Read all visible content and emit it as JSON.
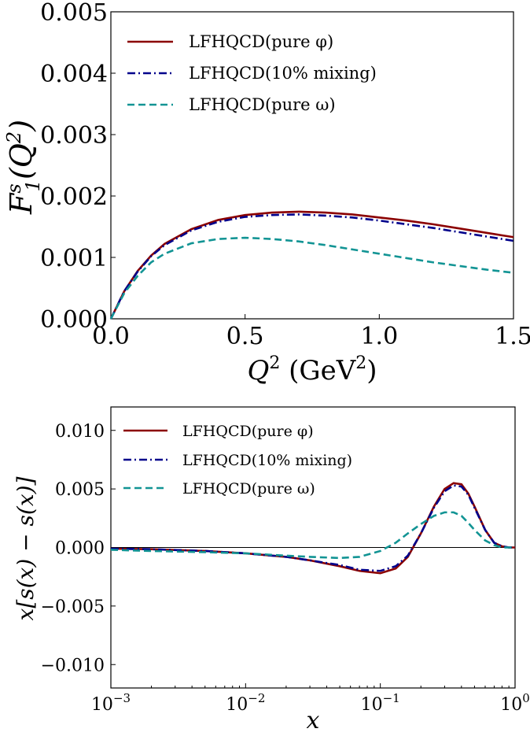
{
  "colors": {
    "pure_phi": "#8b0000",
    "mixing": "#00008b",
    "pure_omega": "#129494"
  },
  "chart_data": [
    {
      "type": "line",
      "xlabel": "Q^2 (GeV^2)",
      "xlabel_parts": {
        "Q": "Q",
        "sup1": "2",
        "unit_open": " (GeV",
        "sup2": "2",
        "unit_close": ")"
      },
      "ylabel": "F_1^s(Q^2)",
      "ylabel_parts": {
        "F": "F",
        "sup": "s",
        "sub": "1",
        "open": "(Q",
        "sup2": "2",
        "close": ")"
      },
      "xlim": [
        0.0,
        1.5
      ],
      "ylim": [
        0.0,
        0.005
      ],
      "x_ticks": [
        "0.0",
        "0.5",
        "1.0",
        "1.5"
      ],
      "x_tick_values": [
        0.0,
        0.5,
        1.0,
        1.5
      ],
      "y_ticks": [
        "0.000",
        "0.001",
        "0.002",
        "0.003",
        "0.004",
        "0.005"
      ],
      "y_tick_values": [
        0.0,
        0.001,
        0.002,
        0.003,
        0.004,
        0.005
      ],
      "legend_position": "top-left",
      "series": [
        {
          "name": "LFHQCD(pure φ)",
          "style": "solid",
          "color_key": "pure_phi",
          "x": [
            0.0,
            0.05,
            0.1,
            0.15,
            0.2,
            0.3,
            0.4,
            0.5,
            0.6,
            0.7,
            0.8,
            0.9,
            1.0,
            1.1,
            1.2,
            1.3,
            1.4,
            1.5
          ],
          "y": [
            0.0,
            0.00045,
            0.00078,
            0.00103,
            0.00122,
            0.00146,
            0.00161,
            0.00169,
            0.00173,
            0.001745,
            0.00173,
            0.0017,
            0.00165,
            0.0016,
            0.00154,
            0.00147,
            0.0014,
            0.00133
          ]
        },
        {
          "name": "LFHQCD(10% mixing)",
          "style": "dashdot",
          "color_key": "mixing",
          "x": [
            0.0,
            0.05,
            0.1,
            0.15,
            0.2,
            0.3,
            0.4,
            0.5,
            0.6,
            0.7,
            0.8,
            0.9,
            1.0,
            1.1,
            1.2,
            1.3,
            1.4,
            1.5
          ],
          "y": [
            0.0,
            0.00045,
            0.00077,
            0.00102,
            0.0012,
            0.00144,
            0.00158,
            0.00166,
            0.00169,
            0.0017,
            0.00168,
            0.00165,
            0.0016,
            0.00154,
            0.00148,
            0.00141,
            0.00134,
            0.00127
          ]
        },
        {
          "name": "LFHQCD(pure ω)",
          "style": "dashed",
          "color_key": "pure_omega",
          "x": [
            0.0,
            0.05,
            0.1,
            0.15,
            0.2,
            0.3,
            0.4,
            0.5,
            0.6,
            0.7,
            0.8,
            0.9,
            1.0,
            1.1,
            1.2,
            1.3,
            1.4,
            1.5
          ],
          "y": [
            0.0,
            0.00042,
            0.0007,
            0.00092,
            0.00106,
            0.00123,
            0.0013,
            0.00132,
            0.0013,
            0.00126,
            0.0012,
            0.00113,
            0.00106,
            0.00099,
            0.00092,
            0.00086,
            0.0008,
            0.00075
          ]
        }
      ]
    },
    {
      "type": "line",
      "xscale": "log",
      "xlabel": "x",
      "ylabel": "x[s(x) − s̄(x)]",
      "ylabel_parts": {
        "a": "x[s(x) − ",
        "s": "s",
        "b": "(x)]"
      },
      "xlim": [
        0.001,
        1.0
      ],
      "ylim": [
        -0.012,
        0.012
      ],
      "x_ticks": [
        {
          "base": "10",
          "exp": "−3",
          "value": 0.001
        },
        {
          "base": "10",
          "exp": "−2",
          "value": 0.01
        },
        {
          "base": "10",
          "exp": "−1",
          "value": 0.1
        },
        {
          "base": "10",
          "exp": "0",
          "value": 1.0
        }
      ],
      "y_ticks": [
        "0.010",
        "0.005",
        "0.000",
        "−0.005",
        "−0.010"
      ],
      "y_tick_values": [
        0.01,
        0.005,
        0.0,
        -0.005,
        -0.01
      ],
      "zero_line": true,
      "legend_position": "top-left",
      "series": [
        {
          "name": "LFHQCD(pure φ)",
          "style": "solid",
          "color_key": "pure_phi",
          "x": [
            0.001,
            0.002,
            0.005,
            0.01,
            0.02,
            0.03,
            0.05,
            0.07,
            0.1,
            0.13,
            0.16,
            0.2,
            0.25,
            0.3,
            0.35,
            0.4,
            0.45,
            0.5,
            0.6,
            0.7,
            0.8,
            0.9,
            1.0
          ],
          "y": [
            -0.0001,
            -0.00015,
            -0.0003,
            -0.0005,
            -0.0008,
            -0.0011,
            -0.0016,
            -0.002,
            -0.0022,
            -0.0018,
            -0.0008,
            0.0012,
            0.0035,
            0.005,
            0.0055,
            0.0054,
            0.0046,
            0.0035,
            0.0015,
            0.0004,
            0.0001,
            0.0,
            0.0
          ]
        },
        {
          "name": "LFHQCD(10% mixing)",
          "style": "dashdot",
          "color_key": "mixing",
          "x": [
            0.001,
            0.002,
            0.005,
            0.01,
            0.02,
            0.03,
            0.05,
            0.07,
            0.1,
            0.13,
            0.16,
            0.2,
            0.25,
            0.3,
            0.35,
            0.4,
            0.45,
            0.5,
            0.6,
            0.7,
            0.8,
            0.9,
            1.0
          ],
          "y": [
            -0.0001,
            -0.00015,
            -0.0003,
            -0.0005,
            -0.0008,
            -0.0011,
            -0.0015,
            -0.0019,
            -0.002,
            -0.0016,
            -0.0007,
            0.0012,
            0.0034,
            0.0048,
            0.0053,
            0.0052,
            0.0045,
            0.0034,
            0.0015,
            0.0004,
            0.0001,
            0.0,
            0.0
          ]
        },
        {
          "name": "LFHQCD(pure ω)",
          "style": "dashed",
          "color_key": "pure_omega",
          "x": [
            0.001,
            0.002,
            0.005,
            0.01,
            0.02,
            0.03,
            0.05,
            0.07,
            0.1,
            0.13,
            0.16,
            0.2,
            0.25,
            0.3,
            0.35,
            0.4,
            0.45,
            0.5,
            0.6,
            0.7,
            0.8,
            0.9,
            1.0
          ],
          "y": [
            -0.0002,
            -0.0003,
            -0.0004,
            -0.0005,
            -0.0007,
            -0.0008,
            -0.0009,
            -0.0008,
            -0.0003,
            0.0004,
            0.0012,
            0.002,
            0.0027,
            0.003,
            0.003,
            0.0027,
            0.0021,
            0.0015,
            0.0006,
            0.0002,
            0.0,
            0.0,
            0.0
          ]
        }
      ]
    }
  ]
}
